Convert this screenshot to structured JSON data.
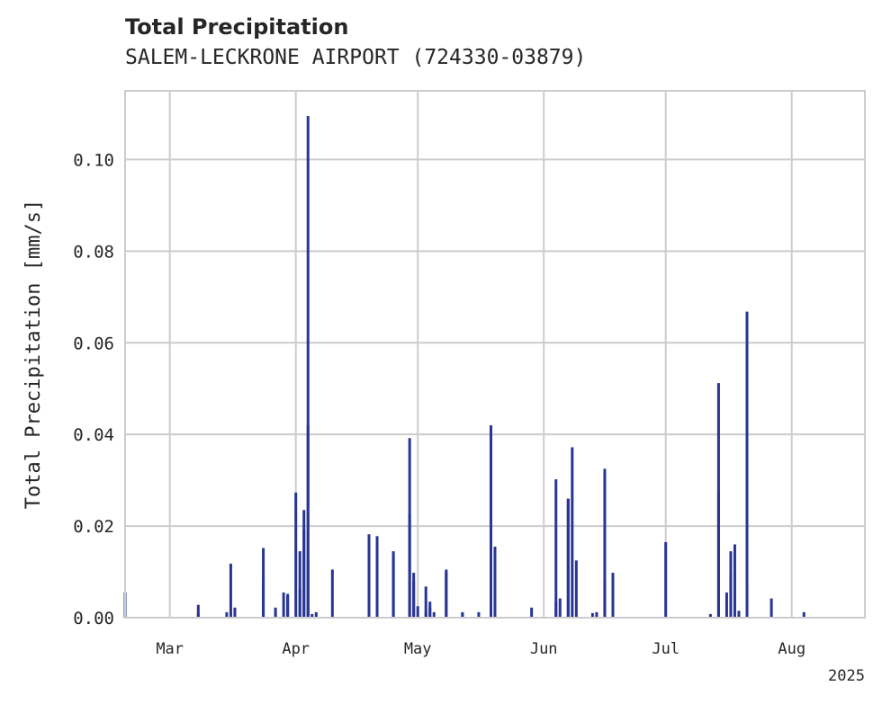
{
  "chart_data": {
    "type": "bar",
    "title": "Total Precipitation",
    "subtitle": "SALEM-LECKRONE AIRPORT (724330-03879)",
    "xlabel": "",
    "ylabel": "Total Precipitation [mm/s]",
    "xlim": [
      "2025-02-18",
      "2025-08-19"
    ],
    "ylim": [
      0,
      0.115
    ],
    "yticks": [
      0.0,
      0.02,
      0.04,
      0.06,
      0.08,
      0.1
    ],
    "ytick_labels": [
      "0.00",
      "0.02",
      "0.04",
      "0.06",
      "0.08",
      "0.10"
    ],
    "xticks": [
      "2025-03-01",
      "2025-04-01",
      "2025-05-01",
      "2025-06-01",
      "2025-07-01",
      "2025-08-01"
    ],
    "xtick_labels": [
      "Mar",
      "Apr",
      "May",
      "Jun",
      "Jul",
      "Aug"
    ],
    "x_offset_label": "2025",
    "grid": true,
    "colors": {
      "bar": "#283593",
      "grid": "#cccccc",
      "frame": "#cccccc",
      "text": "#262626"
    },
    "series": [
      {
        "x": [
          "2025-02-18",
          "2025-02-18",
          "2025-03-08",
          "2025-03-08",
          "2025-03-15",
          "2025-03-16",
          "2025-03-17",
          "2025-03-24",
          "2025-03-24",
          "2025-03-27",
          "2025-03-27",
          "2025-03-29",
          "2025-03-30",
          "2025-03-30",
          "2025-04-01",
          "2025-04-02",
          "2025-04-02",
          "2025-04-03",
          "2025-04-03",
          "2025-04-04",
          "2025-04-04",
          "2025-04-04",
          "2025-04-05",
          "2025-04-06",
          "2025-04-10",
          "2025-04-19",
          "2025-04-19",
          "2025-04-21",
          "2025-04-25",
          "2025-04-25",
          "2025-04-29",
          "2025-04-29",
          "2025-04-30",
          "2025-04-30",
          "2025-05-01",
          "2025-05-03",
          "2025-05-03",
          "2025-05-04",
          "2025-05-04",
          "2025-05-05",
          "2025-05-08",
          "2025-05-08",
          "2025-05-12",
          "2025-05-12",
          "2025-05-16",
          "2025-05-19",
          "2025-05-20",
          "2025-05-29",
          "2025-06-04",
          "2025-06-04",
          "2025-06-05",
          "2025-06-07",
          "2025-06-07",
          "2025-06-08",
          "2025-06-09",
          "2025-06-13",
          "2025-06-14",
          "2025-06-16",
          "2025-06-16",
          "2025-06-18",
          "2025-07-01",
          "2025-07-12",
          "2025-07-14",
          "2025-07-14",
          "2025-07-16",
          "2025-07-17",
          "2025-07-17",
          "2025-07-18",
          "2025-07-19",
          "2025-07-21",
          "2025-07-21",
          "2025-07-27",
          "2025-08-04"
        ],
        "values": [
          0.0055,
          0.0012,
          0.0028,
          0.0008,
          0.0012,
          0.0118,
          0.0022,
          0.0152,
          0.0085,
          0.0012,
          0.0022,
          0.0055,
          0.0052,
          0.0048,
          0.0273,
          0.0145,
          0.0062,
          0.0192,
          0.0235,
          0.1095,
          0.042,
          0.0128,
          0.0008,
          0.0012,
          0.0105,
          0.0182,
          0.01,
          0.0178,
          0.0145,
          0.0135,
          0.0225,
          0.0392,
          0.0098,
          0.008,
          0.0025,
          0.0068,
          0.0012,
          0.0022,
          0.0035,
          0.0012,
          0.0105,
          0.01,
          0.001,
          0.0012,
          0.0012,
          0.042,
          0.0155,
          0.0022,
          0.0035,
          0.0302,
          0.0042,
          0.026,
          0.0258,
          0.0372,
          0.0125,
          0.001,
          0.0012,
          0.0325,
          0.008,
          0.0098,
          0.0165,
          0.0008,
          0.028,
          0.0512,
          0.0055,
          0.0145,
          0.0095,
          0.016,
          0.0015,
          0.0075,
          0.0668,
          0.0042,
          0.0012
        ]
      }
    ]
  }
}
